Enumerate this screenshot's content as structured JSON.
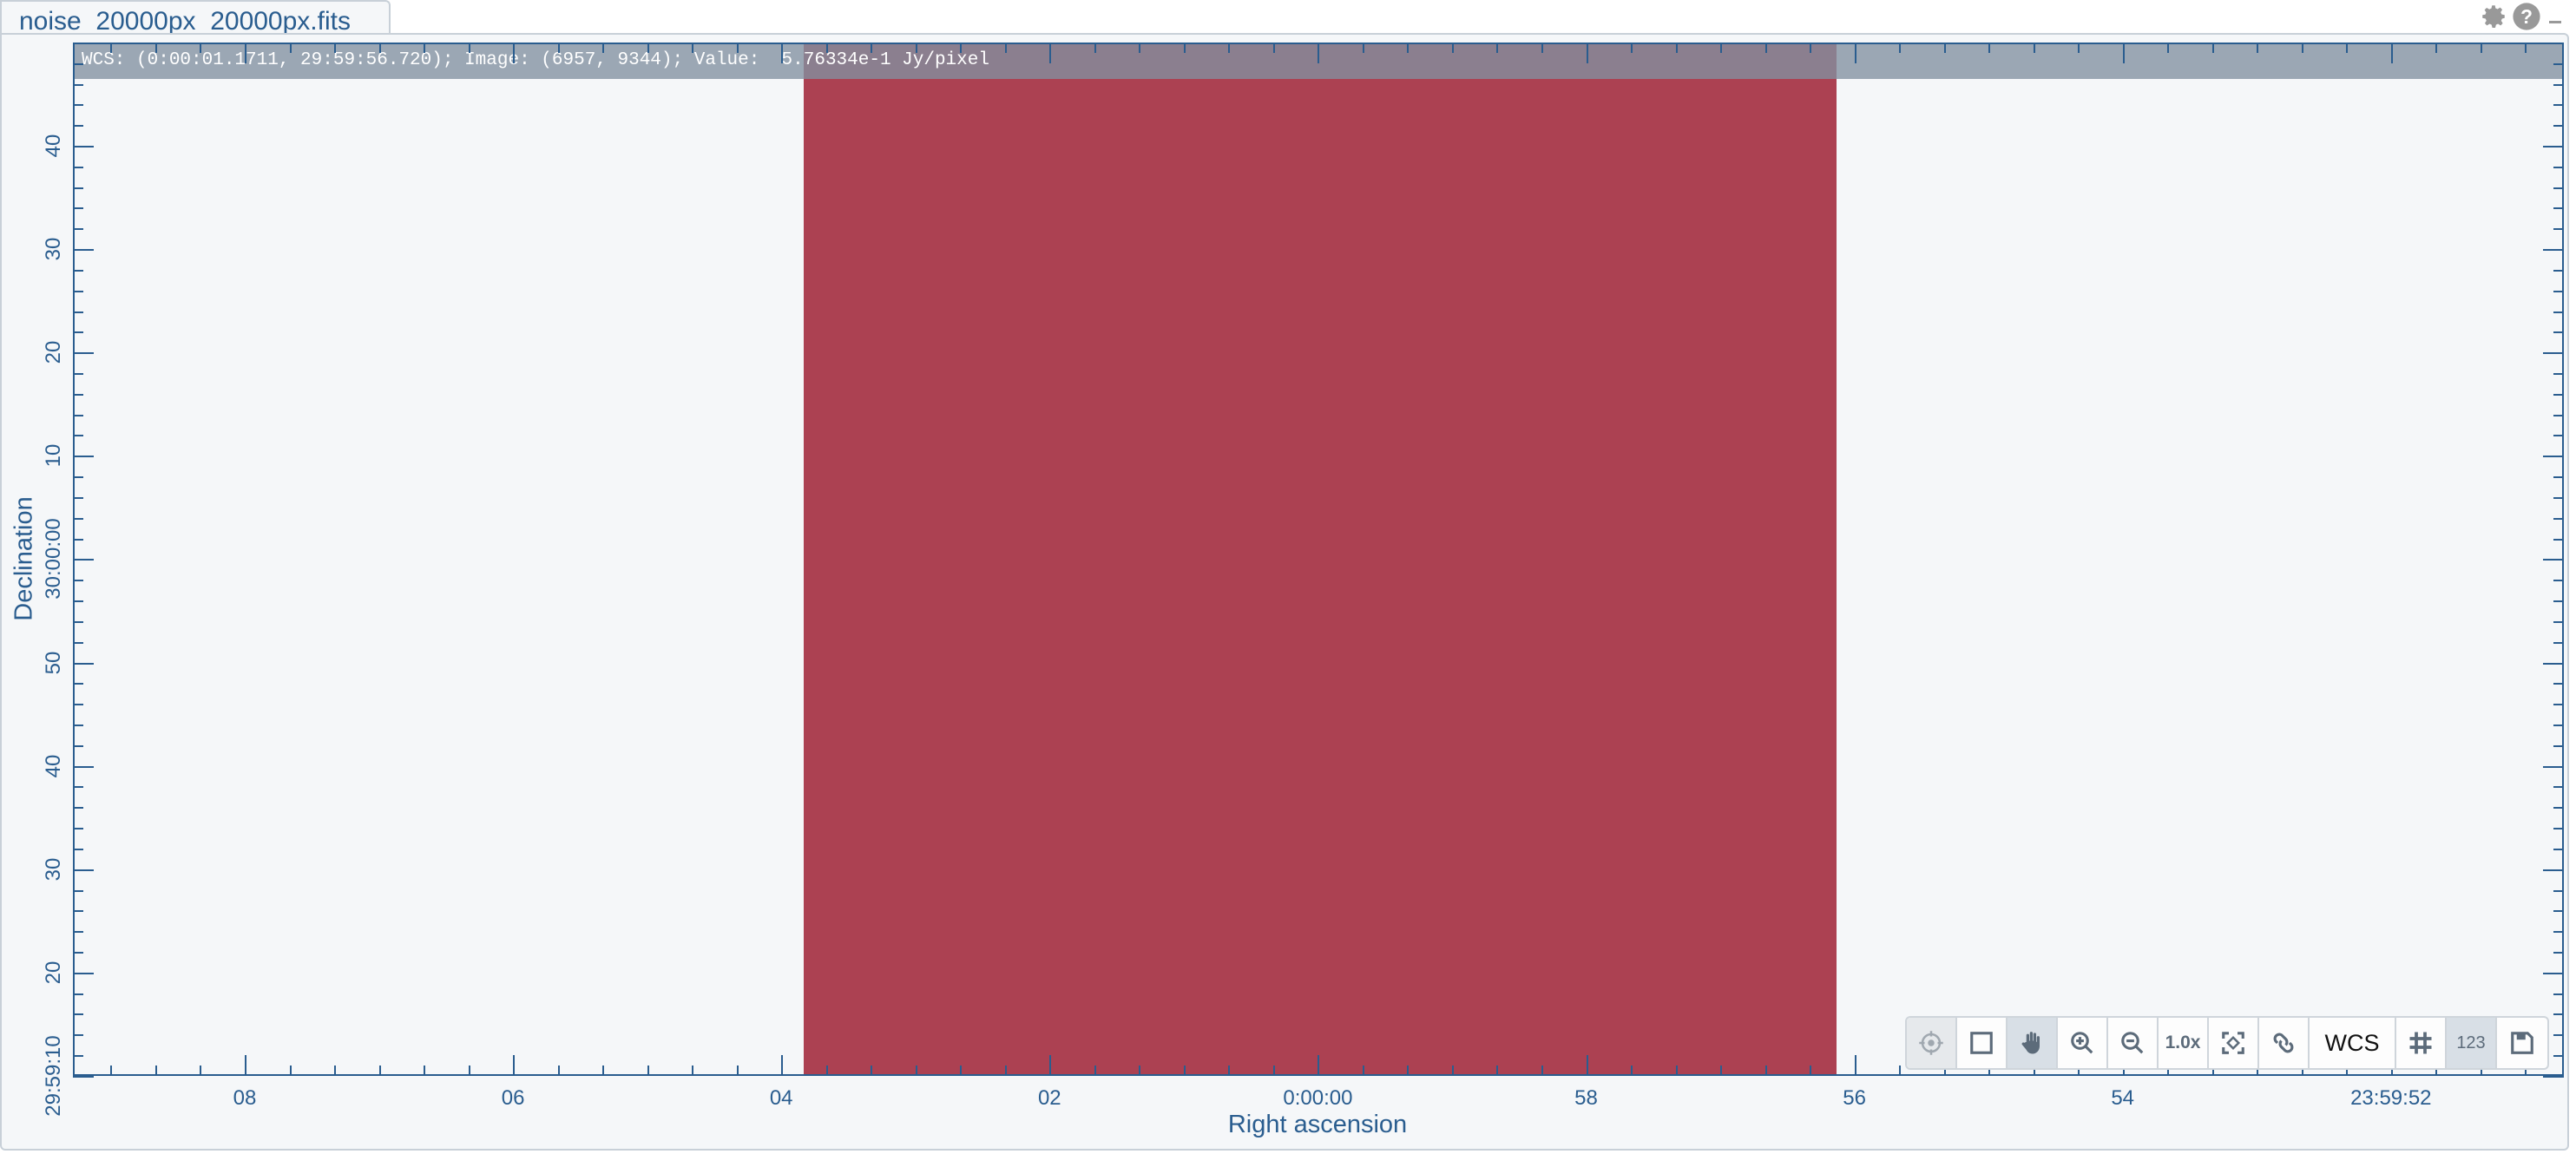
{
  "tab": {
    "title": "noise_20000px_20000px.fits"
  },
  "window_icons": [
    "gear-icon",
    "help-icon",
    "minimize-icon"
  ],
  "cursor_info": {
    "text": "WCS: (0:00:01.1711, 29:59:56.720); Image: (6957, 9344); Value:  5.76334e-1 Jy/pixel"
  },
  "axes": {
    "x_label": "Right ascension",
    "y_label": "Declination",
    "x_ticks": [
      "08",
      "06",
      "04",
      "02",
      "0:00:00",
      "58",
      "56",
      "54",
      "23:59:52"
    ],
    "y_ticks": [
      "40",
      "30",
      "20",
      "10",
      "30:00:00",
      "50",
      "40",
      "30",
      "20",
      "29:59:10"
    ]
  },
  "colors": {
    "image": "#ac4152",
    "axis": "#2a5d8f"
  },
  "toolbar": {
    "buttons": [
      {
        "name": "crosshair",
        "icon": "crosshair-icon",
        "state": "disabled"
      },
      {
        "name": "region",
        "icon": "square-icon"
      },
      {
        "name": "pan",
        "icon": "hand-icon",
        "state": "active"
      },
      {
        "name": "zoom-in",
        "icon": "zoom-in-icon"
      },
      {
        "name": "zoom-out",
        "icon": "zoom-out-icon"
      },
      {
        "name": "zoom-1x",
        "label": "1.0x"
      },
      {
        "name": "fit",
        "icon": "fit-screen-icon"
      },
      {
        "name": "link",
        "icon": "link-icon"
      },
      {
        "name": "coordinate-system",
        "label": "WCS"
      },
      {
        "name": "grid",
        "icon": "grid-icon"
      },
      {
        "name": "pixel-values",
        "label": "123",
        "state": "active"
      },
      {
        "name": "save",
        "icon": "save-icon"
      }
    ]
  }
}
